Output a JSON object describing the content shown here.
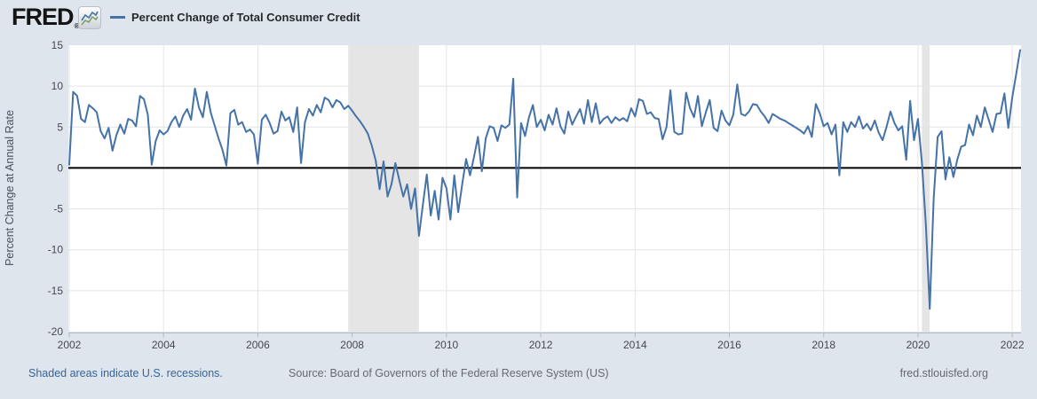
{
  "header": {
    "logo_text": "FRED",
    "registered_mark": "®",
    "legend_label": "Percent Change of Total Consumer Credit"
  },
  "y_axis": {
    "title": "Percent Change at Annual Rate",
    "ticks": [
      15,
      10,
      5,
      0,
      -5,
      -10,
      -15,
      -20
    ]
  },
  "x_axis": {
    "ticks": [
      2002,
      2004,
      2006,
      2008,
      2010,
      2012,
      2014,
      2016,
      2018,
      2020,
      2022
    ]
  },
  "footer": {
    "recession_note": "Shaded areas indicate U.S. recessions.",
    "source": "Source: Board of Governors of the Federal Reserve System (US)",
    "site": "fred.stlouisfed.org"
  },
  "chart_data": {
    "type": "line",
    "title": "Percent Change of Total Consumer Credit",
    "ylabel": "Percent Change at Annual Rate",
    "ylim": [
      -20,
      15
    ],
    "xlim_years": [
      2002,
      2022.4
    ],
    "frequency": "monthly",
    "x_start": {
      "year": 2002,
      "month": 1
    },
    "x_end": {
      "year": 2022,
      "month": 3
    },
    "grid": true,
    "legend_position": "top-left",
    "line_color": "#4572a7",
    "zero_line_color": "#000000",
    "grid_color": "#e4e4e4",
    "recession_color": "#e5e5e5",
    "recessions": [
      {
        "start": 2007.9167,
        "end": 2009.4167
      },
      {
        "start": 2020.0833,
        "end": 2020.25
      }
    ],
    "values": [
      0.4,
      9.3,
      8.8,
      6.0,
      5.6,
      7.7,
      7.3,
      6.8,
      4.5,
      3.6,
      4.9,
      2.1,
      4.0,
      5.3,
      4.2,
      6.0,
      5.8,
      5.1,
      8.8,
      8.4,
      6.5,
      0.4,
      3.3,
      4.6,
      4.1,
      4.5,
      5.6,
      6.3,
      5.0,
      6.4,
      7.2,
      5.9,
      9.7,
      7.4,
      6.2,
      9.3,
      6.8,
      5.2,
      3.6,
      2.2,
      0.3,
      6.7,
      7.1,
      5.3,
      5.6,
      4.4,
      4.7,
      4.1,
      0.5,
      5.9,
      6.5,
      5.5,
      4.2,
      4.5,
      6.9,
      5.8,
      6.2,
      4.4,
      7.4,
      0.6,
      5.6,
      7.2,
      6.4,
      7.7,
      6.8,
      8.6,
      8.3,
      7.4,
      8.3,
      8.0,
      7.2,
      7.6,
      7.0,
      6.3,
      5.7,
      5.0,
      4.2,
      2.7,
      0.9,
      -2.6,
      0.8,
      -3.5,
      -2.0,
      0.6,
      -1.5,
      -3.5,
      -2.0,
      -5.0,
      -2.5,
      -8.3,
      -4.5,
      -0.8,
      -5.8,
      -2.8,
      -6.3,
      -1.2,
      -2.5,
      -6.3,
      -0.9,
      -5.4,
      -2.0,
      1.1,
      -0.9,
      1.3,
      3.8,
      -0.4,
      3.6,
      5.1,
      4.9,
      3.3,
      5.2,
      4.9,
      5.3,
      10.9,
      -3.6,
      5.5,
      3.9,
      6.2,
      7.7,
      5.0,
      5.9,
      4.6,
      6.5,
      5.3,
      7.3,
      5.1,
      4.2,
      6.9,
      5.3,
      6.3,
      7.2,
      5.4,
      8.3,
      5.6,
      7.9,
      5.4,
      6.0,
      6.3,
      5.5,
      6.2,
      5.8,
      6.1,
      5.7,
      7.3,
      6.3,
      8.4,
      8.2,
      6.6,
      6.8,
      6.1,
      6.0,
      3.5,
      5.0,
      9.5,
      4.4,
      4.1,
      4.2,
      9.2,
      7.3,
      6.2,
      8.8,
      5.1,
      6.8,
      8.3,
      4.9,
      4.5,
      7.0,
      5.8,
      5.2,
      6.5,
      10.2,
      6.6,
      6.4,
      6.9,
      7.8,
      7.7,
      6.9,
      6.3,
      5.5,
      6.6,
      6.3,
      6.0,
      5.8,
      5.5,
      5.2,
      4.9,
      4.6,
      4.2,
      5.1,
      3.8,
      7.8,
      6.7,
      5.1,
      5.5,
      4.1,
      5.3,
      -0.9,
      5.6,
      4.4,
      5.6,
      5.0,
      6.3,
      4.8,
      5.4,
      4.6,
      5.8,
      4.3,
      3.4,
      5.0,
      6.9,
      5.5,
      4.6,
      5.1,
      1.0,
      8.2,
      3.4,
      6.0,
      0.6,
      -6.9,
      -17.2,
      -3.8,
      3.8,
      4.5,
      -1.4,
      1.3,
      -1.1,
      1.0,
      2.6,
      2.8,
      5.3,
      4.0,
      6.4,
      5.0,
      7.4,
      5.9,
      4.4,
      6.6,
      6.7,
      9.1,
      4.9,
      8.6,
      11.5,
      14.4
    ]
  }
}
